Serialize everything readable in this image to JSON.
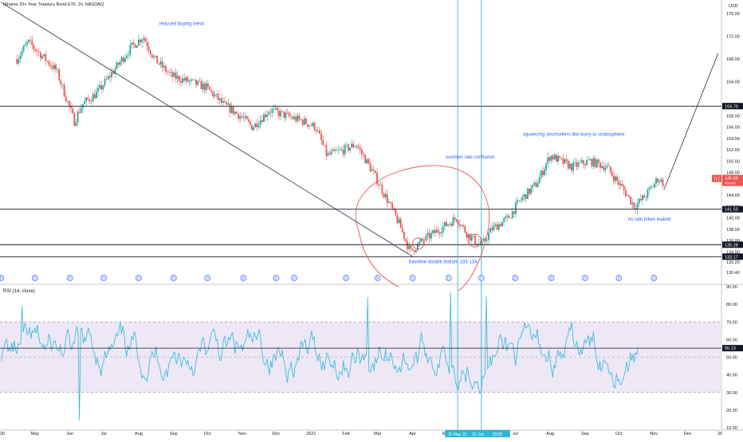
{
  "header": {
    "title": "iShares 20+ Year Treasury Bond ETF, 1h, NASDAQ",
    "currency": "USD"
  },
  "colors": {
    "up": "#26a69a",
    "down": "#ef5350",
    "rsi_line": "#2fb7d9",
    "rsi_band": "#ede7f6",
    "annotation_text": "#2962ff",
    "drawing": "#ef5350",
    "hline": "#131722",
    "vline": "#2fb7d9"
  },
  "chart_data": [
    {
      "type": "candlestick",
      "title": "iShares 20+ Year Treasury Bond ETF, 1h, NASDAQ",
      "y_unit": "USD",
      "ylim": [
        129,
        177
      ],
      "y_ticks": [
        "130.40",
        "132.20",
        "134.00",
        "136.00",
        "138.00",
        "140.00",
        "142.00",
        "144.00",
        "146.00",
        "148.00",
        "150.00",
        "152.00",
        "154.00",
        "156.00",
        "158.00",
        "160.00",
        "164.00",
        "168.00",
        "172.00",
        "176.00"
      ],
      "x_ticks": [
        "20",
        "May",
        "Jun",
        "Jul",
        "Aug",
        "Sep",
        "Oct",
        "Nov",
        "Dec",
        "2021",
        "Feb",
        "Mar",
        "Apr",
        "May",
        "Jun",
        "Jul",
        "Aug",
        "Sep",
        "Oct",
        "Nov",
        "Dec",
        "20"
      ],
      "path_points": [
        [
          "2020-04-15",
          168
        ],
        [
          "2020-04-25",
          171
        ],
        [
          "2020-05-05",
          169
        ],
        [
          "2020-05-20",
          166
        ],
        [
          "2020-06-05",
          157
        ],
        [
          "2020-06-12",
          160
        ],
        [
          "2020-06-25",
          162
        ],
        [
          "2020-07-10",
          166
        ],
        [
          "2020-07-25",
          170
        ],
        [
          "2020-08-05",
          172
        ],
        [
          "2020-08-15",
          168
        ],
        [
          "2020-08-30",
          165
        ],
        [
          "2020-09-15",
          164
        ],
        [
          "2020-09-30",
          163
        ],
        [
          "2020-10-15",
          160
        ],
        [
          "2020-10-30",
          158
        ],
        [
          "2020-11-10",
          156
        ],
        [
          "2020-11-25",
          159
        ],
        [
          "2020-12-10",
          158
        ],
        [
          "2020-12-25",
          157
        ],
        [
          "2021-01-05",
          156
        ],
        [
          "2021-01-15",
          151
        ],
        [
          "2021-01-30",
          152
        ],
        [
          "2021-02-10",
          153
        ],
        [
          "2021-02-25",
          148
        ],
        [
          "2021-03-10",
          143
        ],
        [
          "2021-03-20",
          139
        ],
        [
          "2021-03-30",
          134
        ],
        [
          "2021-04-10",
          136
        ],
        [
          "2021-04-25",
          138
        ],
        [
          "2021-05-10",
          140
        ],
        [
          "2021-05-20",
          137
        ],
        [
          "2021-06-01",
          135
        ],
        [
          "2021-06-10",
          138
        ],
        [
          "2021-06-25",
          140
        ],
        [
          "2021-07-05",
          143
        ],
        [
          "2021-07-20",
          146
        ],
        [
          "2021-08-01",
          151
        ],
        [
          "2021-08-20",
          149
        ],
        [
          "2021-09-05",
          150
        ],
        [
          "2021-09-20",
          149
        ],
        [
          "2021-10-05",
          145
        ],
        [
          "2021-10-15",
          142
        ],
        [
          "2021-10-25",
          144
        ],
        [
          "2021-11-05",
          147
        ],
        [
          "2021-11-10",
          146
        ]
      ],
      "horizontal_levels": [
        159.7,
        141.53,
        135.28,
        133.17
      ],
      "level_labels": [
        "159.70",
        "141.53",
        "135.28",
        "133.17"
      ],
      "last_price_label": "146.88",
      "last_price_badge": "TLT",
      "last_price_sub": "45m45",
      "drawn_lines": [
        {
          "from": [
            "2020-04-01",
            178
          ],
          "to": [
            "2021-04-01",
            133.2
          ]
        },
        {
          "from": [
            "2021-11-10",
            145
          ],
          "to": [
            "2021-12-28",
            169
          ]
        }
      ],
      "vertical_markers": [
        "2021-05-11",
        "2021-06-01"
      ],
      "annotations": [
        {
          "text": "reduced buying trend",
          "at": [
            "2020-09-08",
            174
          ]
        },
        {
          "text": "summer rate confusion",
          "at": [
            "2021-05-22",
            150.5
          ]
        },
        {
          "text": "squeezing shortsellers like burry to stratosphere",
          "at": [
            "2021-08-22",
            154.5
          ]
        },
        {
          "text": "baseline double bottom 133-134",
          "at": [
            "2021-04-28",
            132
          ]
        },
        {
          "text": "no rate hikes leaked",
          "at": [
            "2021-10-28",
            139.5
          ]
        }
      ],
      "dividend_marker": "D",
      "dividend_dates": [
        "2020-04-01",
        "2020-05-01",
        "2020-06-01",
        "2020-07-01",
        "2020-08-01",
        "2020-09-01",
        "2020-10-01",
        "2020-11-02",
        "2020-12-01",
        "2020-12-17",
        "2021-02-01",
        "2021-03-01",
        "2021-04-01",
        "2021-05-03",
        "2021-06-01",
        "2021-07-01",
        "2021-08-02",
        "2021-09-01",
        "2021-10-01",
        "2021-11-01"
      ]
    },
    {
      "type": "line",
      "title": "RSI (14, close)",
      "ylim": [
        10,
        90
      ],
      "y_ticks": [
        "10.00",
        "20.00",
        "30.00",
        "40.00",
        "50.00",
        "60.00",
        "70.00",
        "80.00",
        "90.00"
      ],
      "band": [
        30,
        70
      ],
      "midline": 50,
      "last_value_label": "55.13",
      "peaks": [
        [
          "2020-04-20",
          79
        ],
        [
          "2020-06-10",
          14
        ],
        [
          "2021-02-20",
          84
        ],
        [
          "2021-05-05",
          87
        ],
        [
          "2021-06-05",
          85
        ],
        [
          "2021-11-01",
          86
        ],
        [
          "2021-10-20",
          22
        ]
      ]
    }
  ],
  "time_axis": {
    "cursor_labels": [
      "11 May '21",
      "01 Jun '21",
      "18:00"
    ]
  }
}
